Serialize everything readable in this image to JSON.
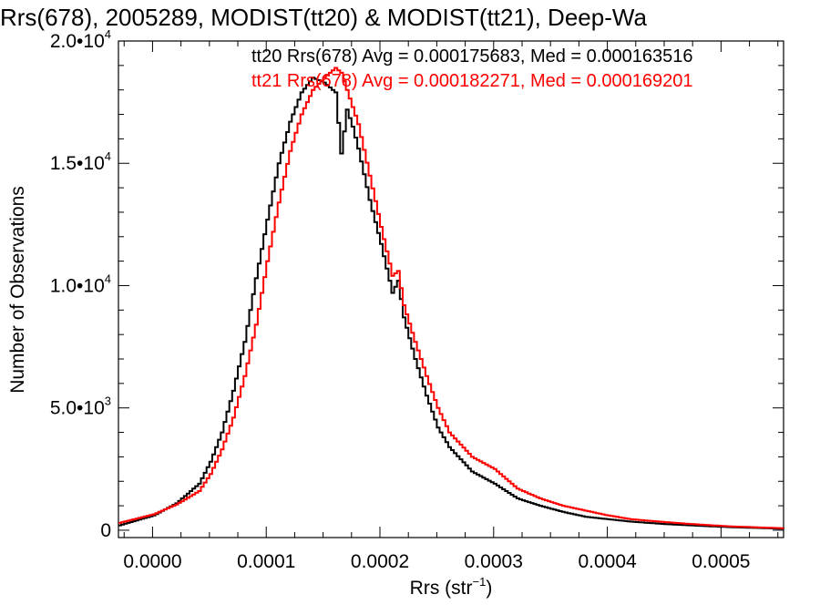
{
  "chart_data": {
    "type": "line",
    "style": "histogram-step",
    "title": "Rrs(678), 2005289, MODIST(tt20) & MODIST(tt21), Deep-Wa",
    "xlabel": "Rrs (str",
    "xlabel_sup": "−1",
    "xlabel_close": ")",
    "ylabel": "Number of Observations",
    "xlim": [
      -3e-05,
      0.000555
    ],
    "ylim": [
      -300,
      20000
    ],
    "x_ticks": [
      0.0,
      0.0001,
      0.0002,
      0.0003,
      0.0004,
      0.0005
    ],
    "x_tick_labels": [
      "0.0000",
      "0.0001",
      "0.0002",
      "0.0003",
      "0.0004",
      "0.0005"
    ],
    "y_ticks": [
      0,
      5000,
      10000,
      15000,
      20000
    ],
    "y_tick_labels": [
      {
        "mantissa": "0",
        "exp": ""
      },
      {
        "mantissa": "5.0•10",
        "exp": "3"
      },
      {
        "mantissa": "1.0•10",
        "exp": "4"
      },
      {
        "mantissa": "1.5•10",
        "exp": "4"
      },
      {
        "mantissa": "2.0•10",
        "exp": "4"
      }
    ],
    "grid": false,
    "legend_position": "top-right",
    "series": [
      {
        "name": "tt20",
        "legend_text": "tt20 Rrs(678) Avg = 0.000175683, Med = 0.000163516",
        "color": "#000000",
        "x": [
          -3e-05,
          0.0,
          2e-05,
          4e-05,
          5e-05,
          6e-05,
          7e-05,
          8e-05,
          9e-05,
          0.0001,
          0.00011,
          0.00012,
          0.00013,
          0.00014,
          0.00015,
          0.000155,
          0.00016,
          0.000165,
          0.00017,
          0.000175,
          0.00018,
          0.00019,
          0.0002,
          0.00021,
          0.000215,
          0.00022,
          0.00023,
          0.00024,
          0.00025,
          0.00026,
          0.00027,
          0.00028,
          0.0003,
          0.00032,
          0.00034,
          0.00036,
          0.00038,
          0.0004,
          0.00042,
          0.00045,
          0.00048,
          0.00051,
          0.000555
        ],
        "y": [
          200,
          600,
          1100,
          1900,
          2800,
          4000,
          5700,
          7700,
          10300,
          12700,
          15000,
          16700,
          17900,
          18500,
          18300,
          18100,
          17900,
          15400,
          17200,
          16500,
          15600,
          13500,
          11700,
          9700,
          10200,
          8700,
          7000,
          5500,
          4200,
          3400,
          2900,
          2400,
          1900,
          1300,
          1000,
          750,
          550,
          450,
          350,
          250,
          180,
          120,
          60
        ]
      },
      {
        "name": "tt21",
        "legend_text": "tt21 Rrs(678) Avg = 0.000182271, Med = 0.000169201",
        "color": "#ff0000",
        "x": [
          -3e-05,
          0.0,
          2e-05,
          4e-05,
          5e-05,
          6e-05,
          7e-05,
          8e-05,
          9e-05,
          0.0001,
          0.00011,
          0.00012,
          0.00013,
          0.00014,
          0.00015,
          0.00016,
          0.000165,
          0.00017,
          0.00018,
          0.00019,
          0.0002,
          0.00021,
          0.000215,
          0.00022,
          0.00023,
          0.00024,
          0.00025,
          0.00026,
          0.00027,
          0.00028,
          0.0003,
          0.00032,
          0.00034,
          0.00036,
          0.00038,
          0.0004,
          0.00042,
          0.00045,
          0.00048,
          0.00051,
          0.000555
        ],
        "y": [
          300,
          650,
          1050,
          1600,
          2300,
          3300,
          4600,
          6300,
          8400,
          11000,
          13400,
          15500,
          17000,
          18000,
          18500,
          18900,
          18700,
          18000,
          16600,
          14500,
          12400,
          10400,
          10600,
          9200,
          7700,
          6300,
          5000,
          4000,
          3500,
          3000,
          2500,
          1700,
          1300,
          1000,
          800,
          600,
          450,
          330,
          230,
          150,
          80
        ]
      }
    ]
  }
}
